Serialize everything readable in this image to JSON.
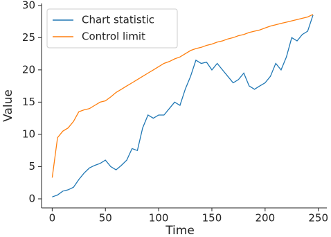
{
  "chart_data": {
    "type": "line",
    "x_label": "Time",
    "y_label": "Value",
    "x": [
      0,
      5,
      10,
      15,
      20,
      25,
      30,
      35,
      40,
      45,
      50,
      55,
      60,
      65,
      70,
      75,
      80,
      85,
      90,
      95,
      100,
      105,
      110,
      115,
      120,
      125,
      130,
      135,
      140,
      145,
      150,
      155,
      160,
      165,
      170,
      175,
      180,
      185,
      190,
      195,
      200,
      205,
      210,
      215,
      220,
      225,
      230,
      235,
      240,
      245
    ],
    "series": [
      {
        "name": "Chart statistic",
        "color": "#1f77b4",
        "values": [
          0.3,
          0.6,
          1.2,
          1.4,
          1.8,
          3,
          4,
          4.8,
          5.2,
          5.5,
          6,
          5,
          4.5,
          5.2,
          6,
          7.8,
          7.5,
          11,
          13,
          12.5,
          13,
          13,
          14,
          15,
          14.5,
          17,
          19,
          21.5,
          21,
          21.2,
          20,
          21,
          20,
          19,
          18,
          18.5,
          19.5,
          17.5,
          17,
          17.5,
          18,
          19,
          21,
          20,
          22,
          25,
          24.5,
          25.5,
          26,
          28.5
        ]
      },
      {
        "name": "Control limit",
        "color": "#ff7f0e",
        "values": [
          3.3,
          9.5,
          10.5,
          11,
          12,
          13.5,
          13.8,
          14,
          14.5,
          15,
          15.2,
          15.8,
          16.5,
          17,
          17.5,
          18,
          18.5,
          19,
          19.5,
          20,
          20.5,
          21,
          21.3,
          21.7,
          22,
          22.5,
          23,
          23.3,
          23.5,
          23.8,
          24,
          24.3,
          24.5,
          24.8,
          25,
          25.3,
          25.5,
          25.8,
          26,
          26.2,
          26.5,
          26.8,
          27,
          27.2,
          27.4,
          27.6,
          27.8,
          28,
          28.2,
          28.6
        ]
      }
    ],
    "xlim": [
      -10,
      258
    ],
    "ylim": [
      -1.4,
      30.3
    ],
    "xticks": [
      0,
      50,
      100,
      150,
      200,
      250
    ],
    "yticks": [
      0,
      5,
      10,
      15,
      20,
      25,
      30
    ],
    "legend": "upper left",
    "grid": false
  }
}
